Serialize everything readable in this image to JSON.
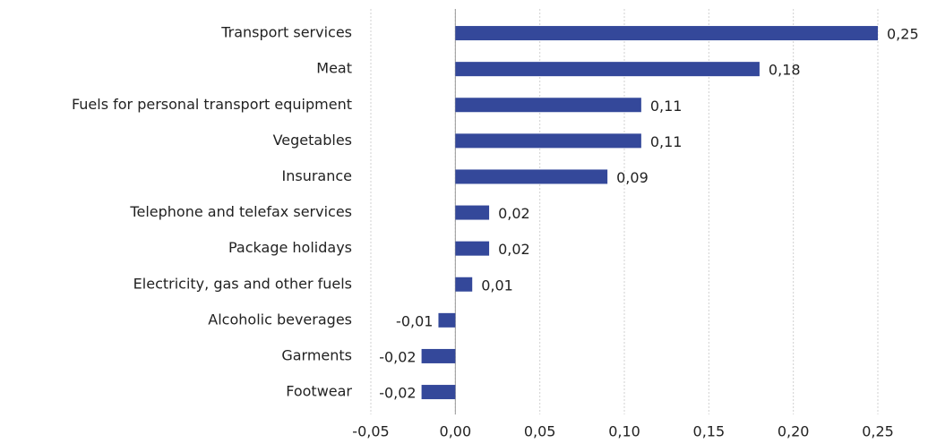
{
  "chart_data": {
    "type": "hbar",
    "categories": [
      "Transport services",
      "Meat",
      "Fuels for personal transport equipment",
      "Vegetables",
      "Insurance",
      "Telephone and telefax services",
      "Package holidays",
      "Electricity, gas and other fuels",
      "Alcoholic beverages",
      "Garments",
      "Footwear"
    ],
    "values": [
      0.25,
      0.18,
      0.11,
      0.11,
      0.09,
      0.02,
      0.02,
      0.01,
      -0.01,
      -0.02,
      -0.02
    ],
    "value_labels": [
      "0,25",
      "0,18",
      "0,11",
      "0,11",
      "0,09",
      "0,02",
      "0,02",
      "0,01",
      "-0,01",
      "-0,02",
      "-0,02"
    ],
    "color": "#34489a",
    "xlim": [
      -0.05,
      0.25
    ],
    "xticks": [
      {
        "value": -0.05,
        "label": "-0,05"
      },
      {
        "value": 0,
        "label": "0,00"
      },
      {
        "value": 0.05,
        "label": "0,05"
      },
      {
        "value": 0.1,
        "label": "0,10"
      },
      {
        "value": 0.15,
        "label": "0,15"
      },
      {
        "value": 0.2,
        "label": "0,20"
      },
      {
        "value": 0.25,
        "label": "0,25"
      }
    ],
    "grid": true
  }
}
